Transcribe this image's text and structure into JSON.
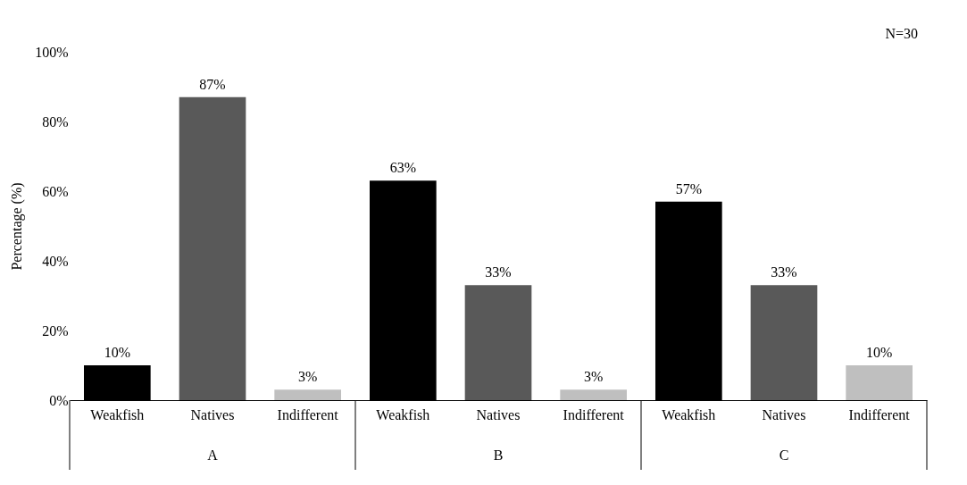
{
  "chart_data": {
    "type": "bar",
    "categories": [
      "Weakfish",
      "Natives",
      "Indifferent",
      "Weakfish",
      "Natives",
      "Indifferent",
      "Weakfish",
      "Natives",
      "Indifferent"
    ],
    "values": [
      10,
      87,
      3,
      63,
      33,
      3,
      57,
      33,
      10
    ],
    "value_labels": [
      "10%",
      "87%",
      "3%",
      "63%",
      "33%",
      "3%",
      "57%",
      "33%",
      "10%"
    ],
    "colors": [
      "#000000",
      "#595959",
      "#bfbfbf",
      "#000000",
      "#595959",
      "#bfbfbf",
      "#000000",
      "#595959",
      "#bfbfbf"
    ],
    "ylabel": "Percentage (%)",
    "ylim": [
      0,
      100
    ],
    "yticks": [
      {
        "value": 0,
        "label": "0%"
      },
      {
        "value": 20,
        "label": "20%"
      },
      {
        "value": 40,
        "label": "40%"
      },
      {
        "value": 60,
        "label": "60%"
      },
      {
        "value": 80,
        "label": "80%"
      },
      {
        "value": 100,
        "label": "100%"
      }
    ],
    "annotations": [
      "N=30",
      "A",
      "B",
      "C"
    ],
    "grid": false
  }
}
